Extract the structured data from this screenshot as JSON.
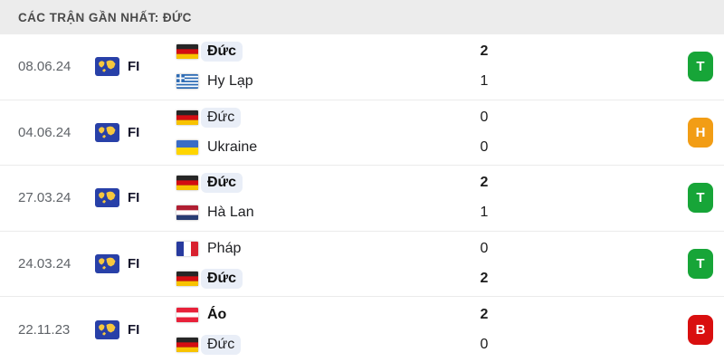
{
  "header": {
    "title": "CÁC TRẬN GẦN NHẤT: ĐỨC"
  },
  "colors": {
    "win": "#17a538",
    "draw": "#f29d15",
    "loss": "#d90f0f",
    "highlight": "#e9eef7",
    "header_bg": "#ececec",
    "comp_icon_bg": "#2840a8",
    "comp_icon_map": "#f6c73e"
  },
  "matches": [
    {
      "date": "08.06.24",
      "competition": "FI",
      "home": {
        "name": "Đức",
        "flag": "de",
        "bold": true,
        "highlight": true,
        "score": "2",
        "score_bold": true
      },
      "away": {
        "name": "Hy Lạp",
        "flag": "gr",
        "bold": false,
        "highlight": false,
        "score": "1",
        "score_bold": false
      },
      "result": {
        "label": "T",
        "type": "win"
      }
    },
    {
      "date": "04.06.24",
      "competition": "FI",
      "home": {
        "name": "Đức",
        "flag": "de",
        "bold": false,
        "highlight": true,
        "score": "0",
        "score_bold": false
      },
      "away": {
        "name": "Ukraine",
        "flag": "ua",
        "bold": false,
        "highlight": false,
        "score": "0",
        "score_bold": false
      },
      "result": {
        "label": "H",
        "type": "draw"
      }
    },
    {
      "date": "27.03.24",
      "competition": "FI",
      "home": {
        "name": "Đức",
        "flag": "de",
        "bold": true,
        "highlight": true,
        "score": "2",
        "score_bold": true
      },
      "away": {
        "name": "Hà Lan",
        "flag": "nl",
        "bold": false,
        "highlight": false,
        "score": "1",
        "score_bold": false
      },
      "result": {
        "label": "T",
        "type": "win"
      }
    },
    {
      "date": "24.03.24",
      "competition": "FI",
      "home": {
        "name": "Pháp",
        "flag": "fr",
        "bold": false,
        "highlight": false,
        "score": "0",
        "score_bold": false
      },
      "away": {
        "name": "Đức",
        "flag": "de",
        "bold": true,
        "highlight": true,
        "score": "2",
        "score_bold": true
      },
      "result": {
        "label": "T",
        "type": "win"
      }
    },
    {
      "date": "22.11.23",
      "competition": "FI",
      "home": {
        "name": "Áo",
        "flag": "at",
        "bold": true,
        "highlight": false,
        "score": "2",
        "score_bold": true
      },
      "away": {
        "name": "Đức",
        "flag": "de",
        "bold": false,
        "highlight": true,
        "score": "0",
        "score_bold": false
      },
      "result": {
        "label": "B",
        "type": "loss"
      }
    }
  ]
}
